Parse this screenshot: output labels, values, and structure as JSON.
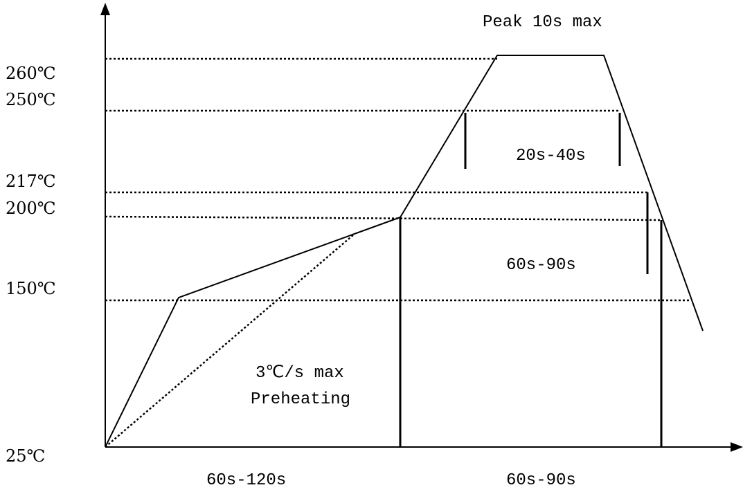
{
  "temperatures": {
    "t260": "260℃",
    "t250": "250℃",
    "t217": "217℃",
    "t200": "200℃",
    "t150": "150℃",
    "t25": "25℃"
  },
  "annotations": {
    "peak": "Peak 10s max",
    "above_250_window": "20s-40s",
    "above_217_window": "60s-90s",
    "ramp_rate": "3℃/s max",
    "preheating": "Preheating",
    "preheat_time": "60s-120s",
    "reflow_time": "60s-90s"
  },
  "colors": {
    "line": "#000000",
    "background": "#ffffff"
  }
}
